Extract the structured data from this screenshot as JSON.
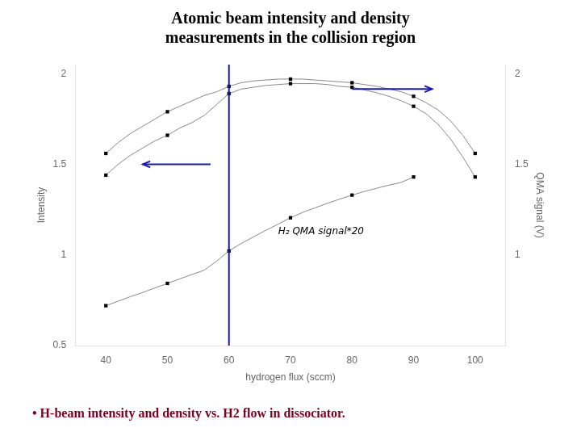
{
  "chart_data": {
    "type": "line",
    "title": [
      "Atomic beam intensity and density",
      "measurements in the collision region"
    ],
    "footnote": "• H-beam intensity and density vs. H2 flow in dissociator.",
    "footnote_color": "#800020",
    "xlabel": "hydrogen flux (sccm)",
    "ylabel": "Intensity",
    "y2label": "QMA signal (V)",
    "xlim": [
      35,
      105
    ],
    "xticks": [
      40,
      50,
      60,
      70,
      80,
      90,
      100
    ],
    "ylim": [
      0.5,
      2.05
    ],
    "yticks": [
      0.5,
      1,
      1.5,
      2
    ],
    "y2lim": [
      0.5,
      2.05
    ],
    "y2ticks": [
      1,
      1.5,
      2
    ],
    "grid": false,
    "series": [
      {
        "type": "line",
        "color": "#888888",
        "line_style": "solid",
        "x": [
          40,
          42,
          44,
          46,
          48,
          50,
          52,
          54,
          56,
          58,
          60,
          62,
          64,
          66,
          68,
          70,
          72,
          74,
          76,
          78,
          80,
          82,
          84,
          86,
          88,
          90,
          92,
          94,
          96,
          98,
          100
        ],
        "values": [
          1.56,
          1.62,
          1.67,
          1.71,
          1.75,
          1.79,
          1.82,
          1.85,
          1.88,
          1.9,
          1.93,
          1.95,
          1.96,
          1.965,
          1.97,
          1.97,
          1.97,
          1.965,
          1.96,
          1.955,
          1.95,
          1.94,
          1.93,
          1.915,
          1.9,
          1.875,
          1.84,
          1.8,
          1.74,
          1.66,
          1.56
        ]
      },
      {
        "type": "scatter",
        "color": "#000000",
        "marker": "square",
        "x": [
          40,
          50,
          60,
          70,
          80,
          90,
          100
        ],
        "values": [
          1.56,
          1.79,
          1.93,
          1.97,
          1.95,
          1.875,
          1.56
        ]
      },
      {
        "type": "line",
        "color": "#888888",
        "line_style": "solid",
        "x": [
          40,
          42,
          44,
          46,
          48,
          50,
          52,
          54,
          56,
          58,
          60,
          62,
          64,
          66,
          68,
          70,
          72,
          74,
          76,
          78,
          80,
          82,
          84,
          86,
          88,
          90,
          92,
          94,
          96,
          98,
          100
        ],
        "values": [
          1.44,
          1.5,
          1.55,
          1.59,
          1.63,
          1.66,
          1.7,
          1.73,
          1.77,
          1.83,
          1.89,
          1.915,
          1.925,
          1.935,
          1.94,
          1.945,
          1.945,
          1.945,
          1.94,
          1.93,
          1.925,
          1.91,
          1.895,
          1.875,
          1.85,
          1.82,
          1.78,
          1.72,
          1.64,
          1.54,
          1.43
        ]
      },
      {
        "type": "scatter",
        "color": "#000000",
        "marker": "square",
        "x": [
          40,
          50,
          60,
          70,
          80,
          90,
          100
        ],
        "values": [
          1.44,
          1.66,
          1.89,
          1.945,
          1.925,
          1.82,
          1.43
        ]
      },
      {
        "type": "line",
        "color": "#888888",
        "line_style": "solid",
        "x": [
          40,
          42,
          44,
          46,
          48,
          50,
          52,
          54,
          56,
          58,
          60,
          62,
          64,
          66,
          68,
          70,
          72,
          74,
          76,
          78,
          80,
          82,
          84,
          86,
          88,
          90
        ],
        "values": [
          0.72,
          0.745,
          0.77,
          0.793,
          0.818,
          0.843,
          0.868,
          0.892,
          0.916,
          0.966,
          1.022,
          1.063,
          1.1,
          1.136,
          1.17,
          1.205,
          1.235,
          1.26,
          1.285,
          1.308,
          1.33,
          1.35,
          1.368,
          1.385,
          1.4,
          1.43
        ]
      },
      {
        "type": "scatter",
        "color": "#000000",
        "marker": "square",
        "x": [
          40,
          50,
          60,
          70,
          80,
          90
        ],
        "values": [
          0.72,
          0.843,
          1.022,
          1.205,
          1.33,
          1.43
        ]
      }
    ],
    "annotations": [
      {
        "type": "vline",
        "x": 60,
        "color": "#1a1aaa"
      },
      {
        "type": "arrow",
        "from": [
          57,
          1.5
        ],
        "to": [
          46,
          1.5
        ],
        "color": "#1a1aaa"
      },
      {
        "type": "arrow",
        "from": [
          80,
          1.915
        ],
        "to": [
          93,
          1.915
        ],
        "color": "#1a1aaa"
      },
      {
        "type": "text",
        "text": "H₂ QMA signal*20",
        "x": 68,
        "y": 1.1,
        "color": "#000000"
      }
    ]
  }
}
